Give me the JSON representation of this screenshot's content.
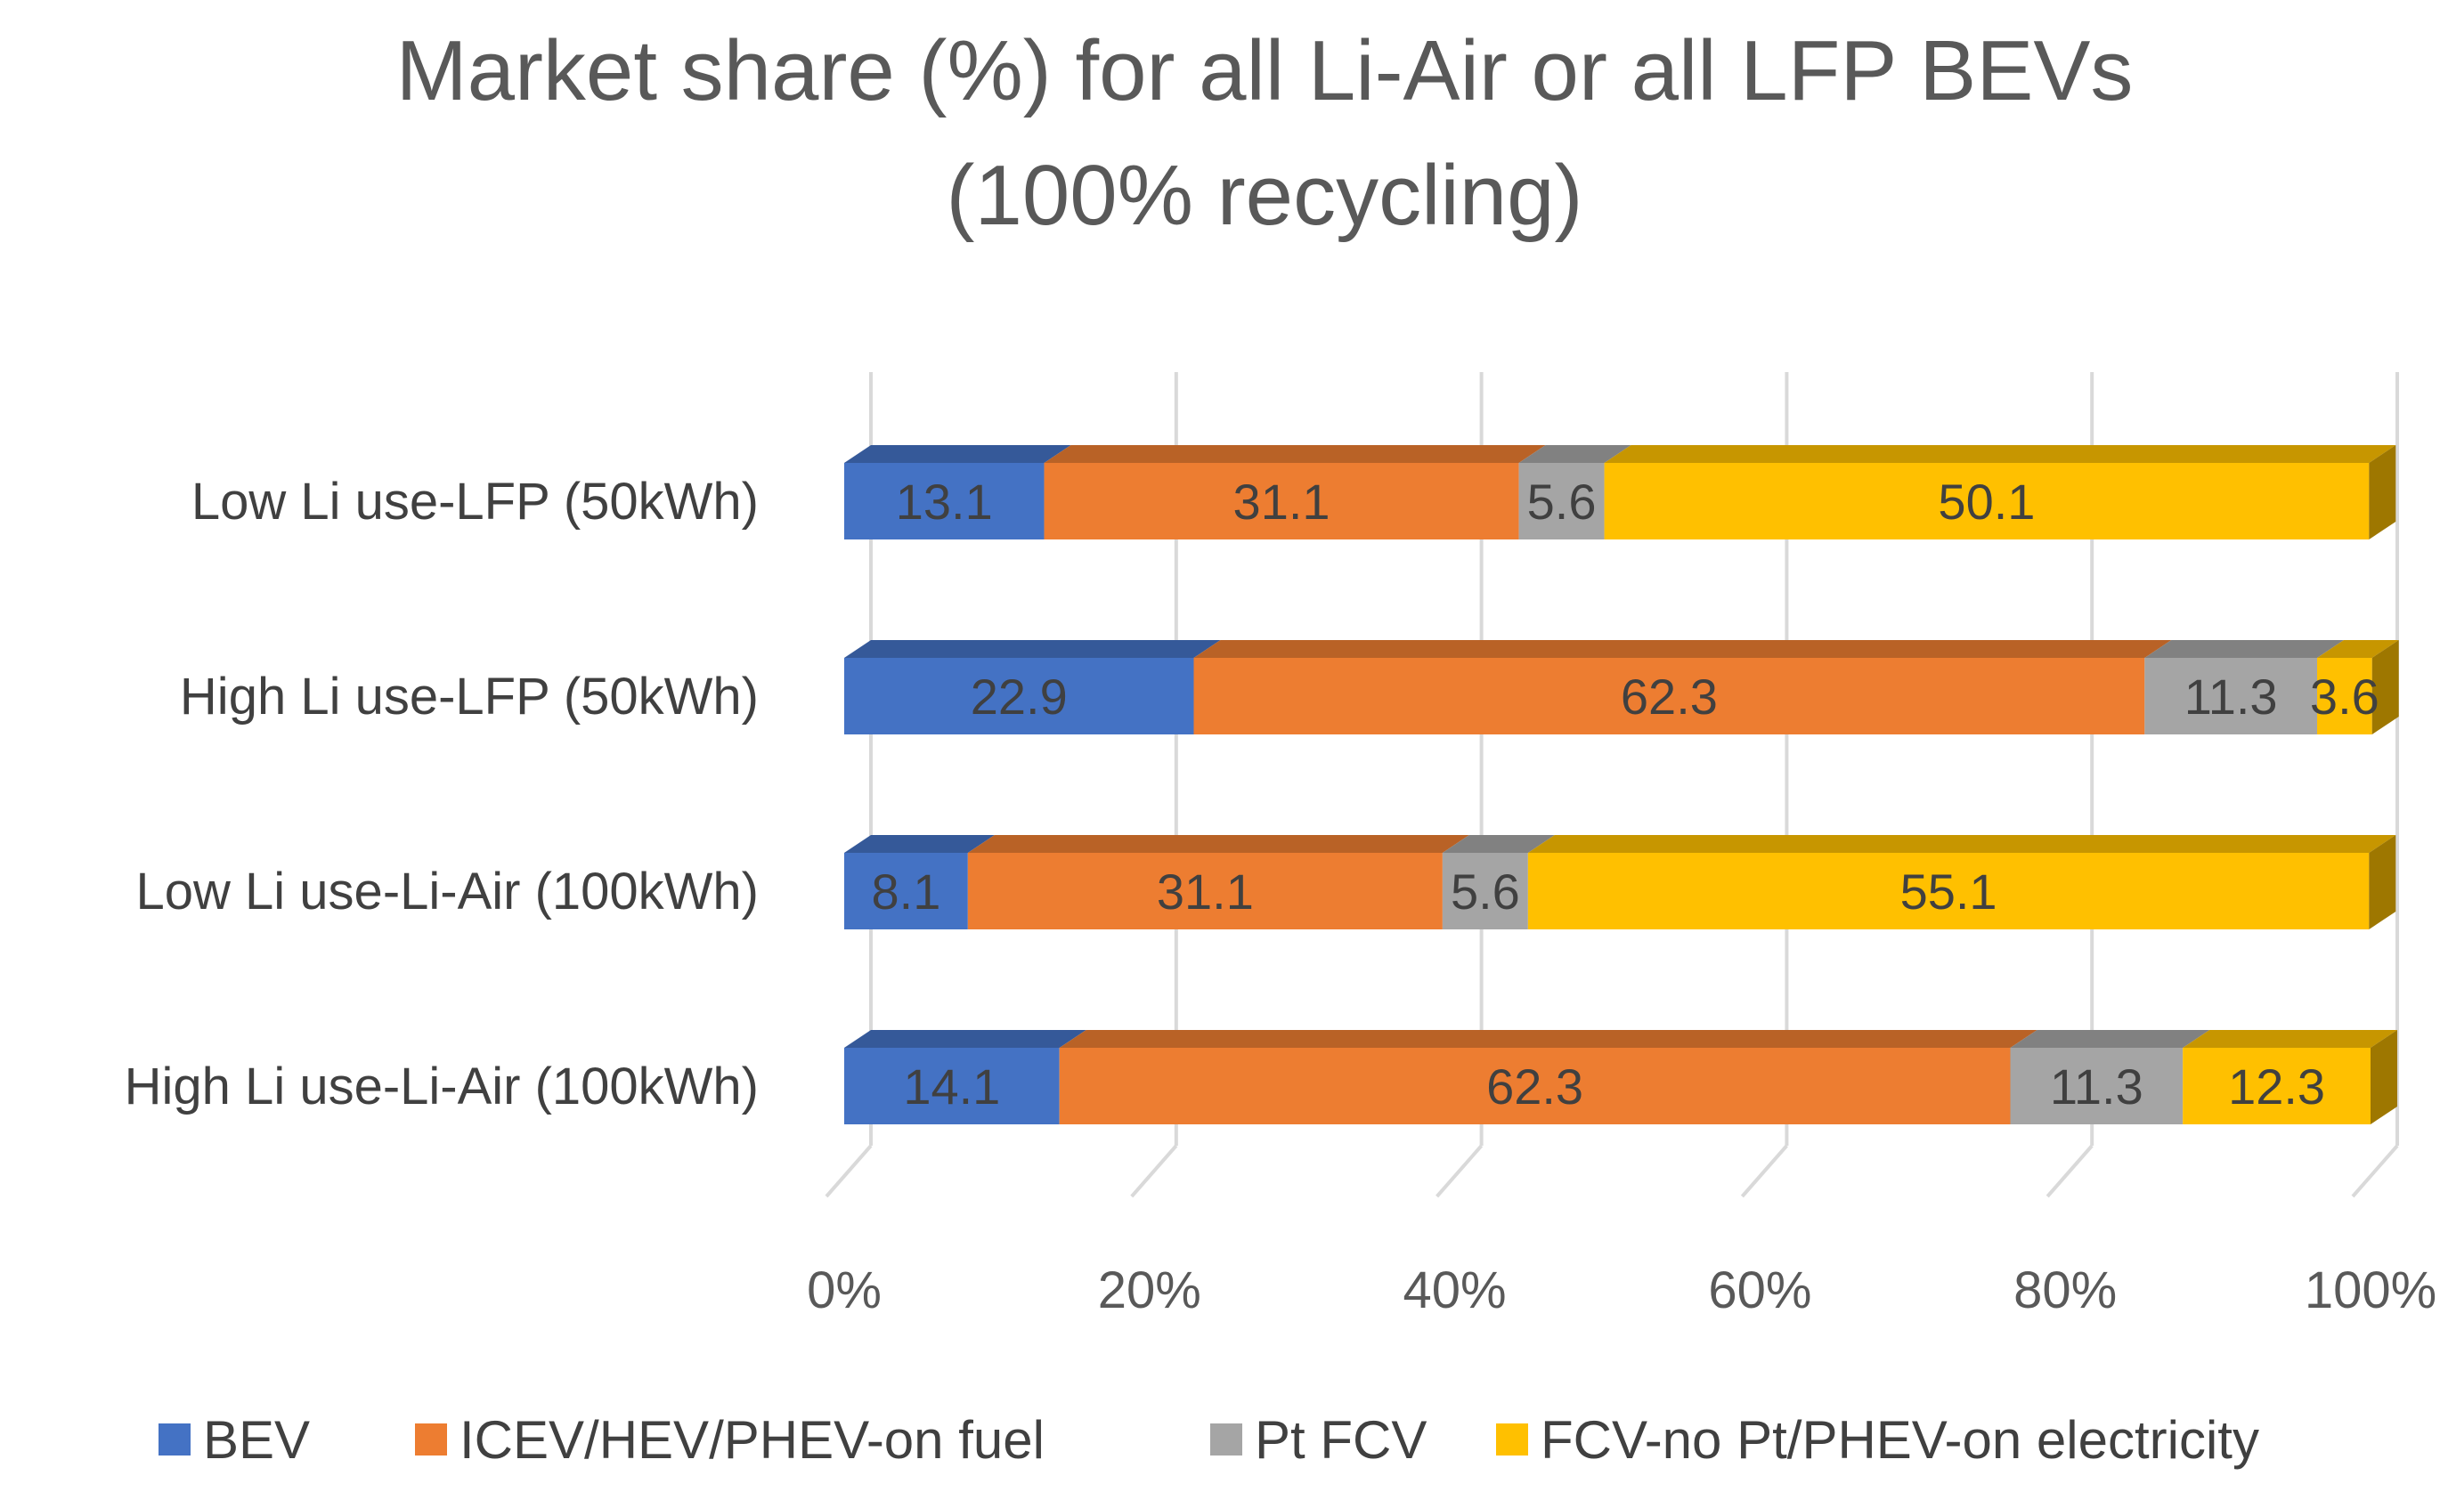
{
  "chart_data": {
    "type": "bar",
    "orientation": "horizontal",
    "stacked": "percent",
    "style": "3d",
    "title": "Market share (%) for all Li-Air or all LFP BEVs (100% recycling)",
    "title_lines": [
      "Market share (%) for all Li-Air or all LFP BEVs",
      "(100% recycling)"
    ],
    "categories": [
      "Low Li use-LFP (50kWh)",
      "High Li use-LFP (50kWh)",
      "Low Li use-Li-Air (100kWh)",
      "High Li use-Li-Air (100kWh)"
    ],
    "series": [
      {
        "name": "BEV",
        "color": "#4472C4",
        "values": [
          13.1,
          22.9,
          8.1,
          14.1
        ]
      },
      {
        "name": "ICEV/HEV/PHEV-on fuel",
        "color": "#ED7D31",
        "values": [
          31.1,
          62.3,
          31.1,
          62.3
        ]
      },
      {
        "name": "Pt FCV",
        "color": "#A5A5A5",
        "values": [
          5.6,
          11.3,
          5.6,
          11.3
        ]
      },
      {
        "name": "FCV-no Pt/PHEV-on electricity",
        "color": "#FFC000",
        "values": [
          50.1,
          3.6,
          55.1,
          12.3
        ]
      }
    ],
    "x_ticks": [
      "0%",
      "20%",
      "40%",
      "60%",
      "80%",
      "100%"
    ],
    "xlim": [
      0,
      100
    ],
    "grid": true,
    "legend": "bottom",
    "xlabel": "",
    "ylabel": ""
  }
}
